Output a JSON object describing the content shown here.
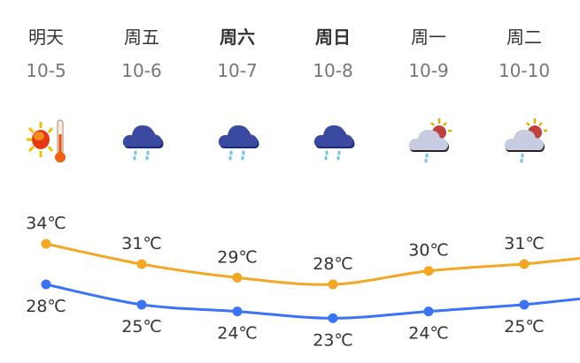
{
  "days": [
    {
      "name": "明天",
      "date": "10-5",
      "bold": false,
      "icon": "sunny-hot-icon",
      "high": "34℃",
      "low": "28℃"
    },
    {
      "name": "周五",
      "date": "10-6",
      "bold": false,
      "icon": "rain-icon",
      "high": "31℃",
      "low": "25℃"
    },
    {
      "name": "周六",
      "date": "10-7",
      "bold": true,
      "icon": "rain-icon",
      "high": "29℃",
      "low": "24℃"
    },
    {
      "name": "周日",
      "date": "10-8",
      "bold": true,
      "icon": "rain-icon",
      "high": "28℃",
      "low": "23℃"
    },
    {
      "name": "周一",
      "date": "10-9",
      "bold": false,
      "icon": "partly-cloudy-shower-icon",
      "high": "30℃",
      "low": "24℃"
    },
    {
      "name": "周二",
      "date": "10-10",
      "bold": false,
      "icon": "partly-cloudy-shower-icon",
      "high": "31℃",
      "low": "25℃"
    }
  ],
  "chart_data": {
    "type": "line",
    "categories": [
      "10-5",
      "10-6",
      "10-7",
      "10-8",
      "10-9",
      "10-10"
    ],
    "series": [
      {
        "values": [
          34,
          31,
          29,
          28,
          30,
          31
        ],
        "color": "#f5a623"
      },
      {
        "values": [
          28,
          25,
          24,
          23,
          24,
          25
        ],
        "color": "#3a73f5"
      }
    ],
    "unit": "℃"
  }
}
